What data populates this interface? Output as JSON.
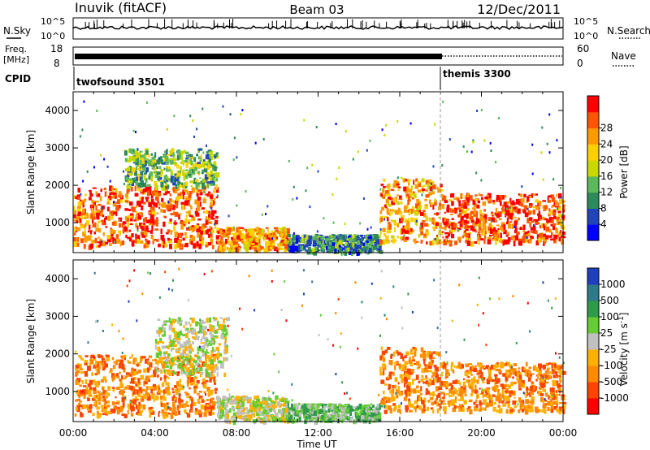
{
  "header": {
    "station": "Inuvik (fitACF)",
    "beam": "Beam 03",
    "date": "12/Dec/2011"
  },
  "strips": {
    "nsky_label": "N.Sky",
    "nsearch_label": "N.Search",
    "freq_label_1": "Freq.",
    "freq_label_2": "[MHz]",
    "nave_label": "Nave",
    "cpid_label": "CPID",
    "left_ticks_top": [
      "10^5",
      "10^0"
    ],
    "right_ticks_top": [
      "10^5",
      "10^0"
    ],
    "left_ticks_freq": [
      "18",
      "8"
    ],
    "right_ticks_nave": [
      "60",
      "0"
    ],
    "cpid_segments": [
      {
        "name": "twofsound 3501",
        "start_h": 0,
        "end_h": 18
      },
      {
        "name": "themis 3300",
        "start_h": 18,
        "end_h": 24
      }
    ]
  },
  "time_axis": {
    "ticks": [
      "00:00",
      "04:00",
      "08:00",
      "12:00",
      "16:00",
      "20:00",
      "00:00"
    ],
    "label": "Time UT"
  },
  "colors": {
    "power_scale": [
      "#0000ff",
      "#2244bb",
      "#2d8a5a",
      "#5cb85c",
      "#c8d800",
      "#ffd000",
      "#ff9900",
      "#ff5500",
      "#ff0000"
    ],
    "velocity_scale": [
      "#1f3fbf",
      "#2d7a8a",
      "#2f9a4a",
      "#66cc33",
      "#c0c0c0",
      "#ffb000",
      "#ff8a00",
      "#ff4400",
      "#ff0000"
    ]
  },
  "chart_data": [
    {
      "type": "heatmap",
      "title": "",
      "xlabel": "",
      "ylabel": "Slant Range [km]",
      "xlim": [
        0,
        24
      ],
      "ylim": [
        200,
        4500
      ],
      "y_ticks": [
        "1000",
        "2000",
        "3000",
        "4000"
      ],
      "colorbar_label": "Power [dB]",
      "colorbar_ticks": [
        "4",
        "8",
        "12",
        "16",
        "20",
        "24",
        "28"
      ],
      "regions": [
        {
          "t_start": 0.0,
          "t_end": 7.0,
          "r_low": 400,
          "r_high": 2000,
          "value_db": 24
        },
        {
          "t_start": 2.5,
          "t_end": 7.0,
          "r_low": 2000,
          "r_high": 3000,
          "value_db": 12
        },
        {
          "t_start": 7.0,
          "t_end": 10.5,
          "r_low": 300,
          "r_high": 900,
          "value_db": 22
        },
        {
          "t_start": 10.5,
          "t_end": 15.0,
          "r_low": 250,
          "r_high": 700,
          "value_db": 8
        },
        {
          "t_start": 15.0,
          "t_end": 18.0,
          "r_low": 500,
          "r_high": 2200,
          "value_db": 22
        },
        {
          "t_start": 18.0,
          "t_end": 24.0,
          "r_low": 500,
          "r_high": 1800,
          "value_db": 26
        }
      ]
    },
    {
      "type": "heatmap",
      "title": "",
      "xlabel": "Time UT",
      "ylabel": "Slant Range [km]",
      "xlim": [
        0,
        24
      ],
      "ylim": [
        200,
        4500
      ],
      "y_ticks": [
        "1000",
        "2000",
        "3000",
        "4000"
      ],
      "colorbar_label": "Velocity [m s^-1]",
      "colorbar_ticks": [
        "1000",
        "500",
        "100",
        "25",
        "-25",
        "-100",
        "-500",
        "-1000"
      ],
      "regions": [
        {
          "t_start": 0.0,
          "t_end": 7.0,
          "r_low": 400,
          "r_high": 2000,
          "value_ms": -200
        },
        {
          "t_start": 4.0,
          "t_end": 7.5,
          "r_low": 1500,
          "r_high": 3000,
          "value_ms": 0
        },
        {
          "t_start": 7.0,
          "t_end": 10.5,
          "r_low": 250,
          "r_high": 900,
          "value_ms": 0
        },
        {
          "t_start": 10.5,
          "t_end": 15.0,
          "r_low": 250,
          "r_high": 700,
          "value_ms": 50
        },
        {
          "t_start": 15.0,
          "t_end": 18.0,
          "r_low": 500,
          "r_high": 2200,
          "value_ms": -300
        },
        {
          "t_start": 18.0,
          "t_end": 24.0,
          "r_low": 500,
          "r_high": 1800,
          "value_ms": -250
        }
      ]
    }
  ]
}
